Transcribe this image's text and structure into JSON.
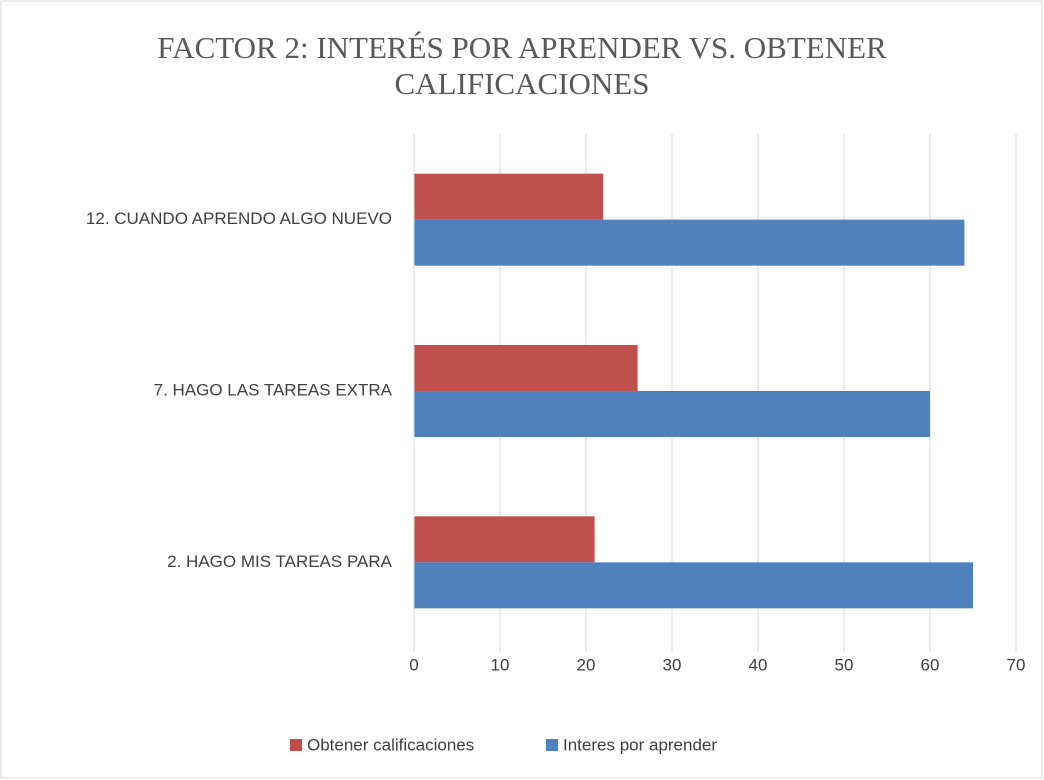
{
  "chart_data": {
    "type": "bar",
    "orientation": "horizontal",
    "title": "FACTOR 2: INTERÉS POR APRENDER VS. OBTENER CALIFICACIONES",
    "categories": [
      "12. CUANDO APRENDO ALGO NUEVO",
      "7. HAGO LAS TAREAS EXTRA",
      "2. HAGO MIS TAREAS PARA"
    ],
    "series": [
      {
        "name": "Obtener calificaciones",
        "color": "#c0504d",
        "values": [
          22,
          26,
          21
        ]
      },
      {
        "name": "Interes por aprender",
        "color": "#4f81bd",
        "values": [
          64,
          60,
          65
        ]
      }
    ],
    "xlim": [
      0,
      70
    ],
    "xticks": [
      0,
      10,
      20,
      30,
      40,
      50,
      60,
      70
    ],
    "grid": true,
    "legend": "bottom"
  }
}
